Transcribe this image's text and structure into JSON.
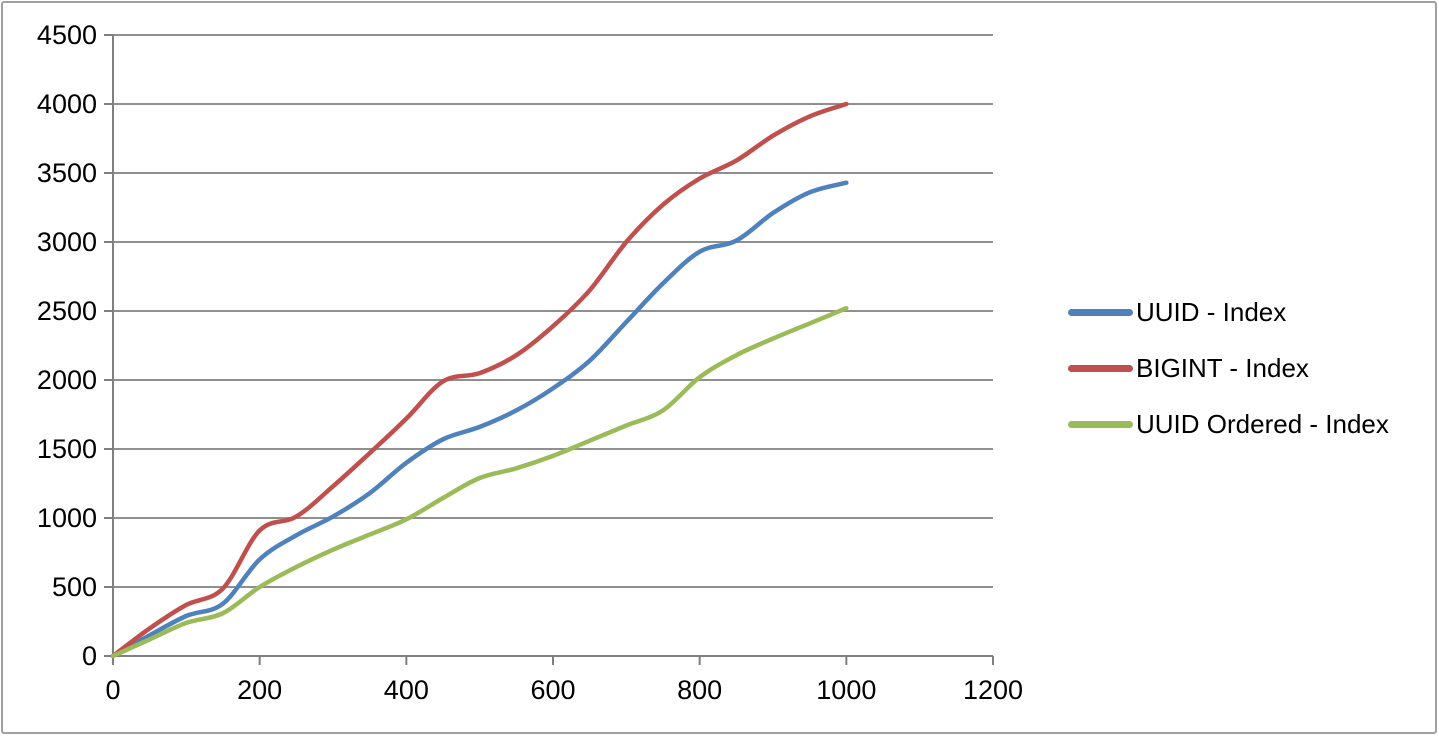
{
  "window": {
    "background": "#ffffff",
    "border_color": "#a0a0a0"
  },
  "chart_data": {
    "type": "line",
    "title": "",
    "xlabel": "",
    "ylabel": "",
    "x": [
      0,
      50,
      100,
      150,
      200,
      250,
      300,
      350,
      400,
      450,
      500,
      550,
      600,
      650,
      700,
      750,
      800,
      850,
      900,
      950,
      1000
    ],
    "series": [
      {
        "name": "UUID - Index",
        "color": "#4F81BD",
        "values": [
          0,
          150,
          290,
          380,
          700,
          875,
          1010,
          1180,
          1400,
          1570,
          1660,
          1780,
          1940,
          2140,
          2420,
          2700,
          2930,
          3010,
          3210,
          3360,
          3430
        ]
      },
      {
        "name": "BIGINT - Index",
        "color": "#C0504D",
        "values": [
          0,
          200,
          370,
          490,
          910,
          1010,
          1230,
          1470,
          1720,
          1990,
          2050,
          2180,
          2390,
          2650,
          3000,
          3270,
          3460,
          3590,
          3770,
          3910,
          4000
        ]
      },
      {
        "name": "UUID Ordered - Index",
        "color": "#9BBB59",
        "values": [
          0,
          120,
          240,
          310,
          500,
          645,
          770,
          880,
          990,
          1145,
          1290,
          1360,
          1450,
          1560,
          1670,
          1780,
          2020,
          2180,
          2300,
          2410,
          2520
        ]
      }
    ],
    "xlim": [
      0,
      1200
    ],
    "ylim": [
      0,
      4500
    ],
    "x_ticks": [
      0,
      200,
      400,
      600,
      800,
      1000,
      1200
    ],
    "y_ticks": [
      0,
      500,
      1000,
      1500,
      2000,
      2500,
      3000,
      3500,
      4000,
      4500
    ],
    "x_tick_labels": [
      "0",
      "200",
      "400",
      "600",
      "800",
      "1000",
      "1200"
    ],
    "y_tick_labels": [
      "0",
      "500",
      "1000",
      "1500",
      "2000",
      "2500",
      "3000",
      "3500",
      "4000",
      "4500"
    ],
    "grid": "horizontal",
    "legend_position": "right",
    "line_width": 4.5,
    "gridline_color": "#8f8f8f",
    "axis_color": "#7f7f7f",
    "tick_label_color": "#000000"
  }
}
